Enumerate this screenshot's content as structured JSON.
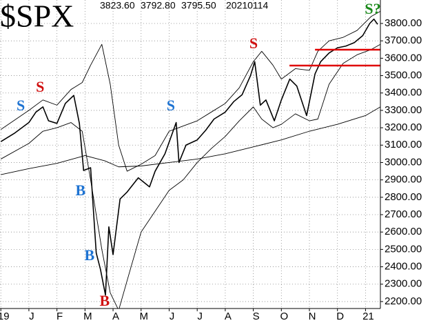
{
  "chart_data": {
    "type": "line",
    "title": "$SPX",
    "header_values": [
      "3823.60",
      "3792.80",
      "3795.50",
      "20210114"
    ],
    "xlim": [
      -1.03,
      12.53
    ],
    "ylim": [
      2160,
      3935
    ],
    "grid": true,
    "xticks": [
      {
        "value": -1,
        "label": "19"
      },
      {
        "value": 0,
        "label": "J"
      },
      {
        "value": 1,
        "label": "F"
      },
      {
        "value": 2,
        "label": "M"
      },
      {
        "value": 3,
        "label": "A"
      },
      {
        "value": 4,
        "label": "M"
      },
      {
        "value": 5,
        "label": "J"
      },
      {
        "value": 6,
        "label": "J"
      },
      {
        "value": 7,
        "label": "A"
      },
      {
        "value": 8,
        "label": "S"
      },
      {
        "value": 9,
        "label": "O"
      },
      {
        "value": 10,
        "label": "N"
      },
      {
        "value": 11,
        "label": "D"
      },
      {
        "value": 12,
        "label": "21"
      }
    ],
    "yticks": [
      {
        "value": 2200,
        "label": "2200.00"
      },
      {
        "value": 2300,
        "label": "2300.00"
      },
      {
        "value": 2400,
        "label": "2400.00"
      },
      {
        "value": 2500,
        "label": "2500.00"
      },
      {
        "value": 2600,
        "label": "2600.00"
      },
      {
        "value": 2700,
        "label": "2700.00"
      },
      {
        "value": 2800,
        "label": "2800.00"
      },
      {
        "value": 2900,
        "label": "2900.00"
      },
      {
        "value": 3000,
        "label": "3000.00"
      },
      {
        "value": 3100,
        "label": "3100.00"
      },
      {
        "value": 3200,
        "label": "3200.00"
      },
      {
        "value": 3300,
        "label": "3300.00"
      },
      {
        "value": 3400,
        "label": "3400.00"
      },
      {
        "value": 3500,
        "label": "3500.00"
      },
      {
        "value": 3600,
        "label": "3600.00"
      },
      {
        "value": 3700,
        "label": "3700.00"
      },
      {
        "value": 3800,
        "label": "3800.00"
      }
    ],
    "series": [
      {
        "color": "#000000",
        "width": 1.6,
        "x": [
          -1.0,
          -0.5,
          0,
          0.25,
          0.5,
          0.7,
          1.0,
          1.3,
          1.6,
          1.8,
          1.95,
          2.2,
          2.4,
          2.55,
          2.73,
          2.85,
          3.0,
          3.25,
          3.5,
          3.9,
          4.3,
          4.5,
          4.85,
          5.25,
          5.35,
          5.6,
          6.0,
          6.3,
          6.6,
          7.0,
          7.3,
          7.6,
          7.9,
          8.05,
          8.25,
          8.45,
          8.75,
          9.0,
          9.3,
          9.55,
          9.9,
          10.2,
          10.4,
          10.7,
          11.0,
          11.3,
          11.6,
          11.9,
          12.15,
          12.3,
          12.43
        ],
        "values": [
          3120,
          3170,
          3230,
          3290,
          3320,
          3240,
          3225,
          3340,
          3386,
          3225,
          2954,
          2970,
          2480,
          2386,
          2237,
          2630,
          2470,
          2790,
          2830,
          2912,
          2860,
          2950,
          3050,
          3230,
          3000,
          3100,
          3130,
          3185,
          3250,
          3290,
          3350,
          3390,
          3500,
          3580,
          3330,
          3360,
          3240,
          3360,
          3480,
          3440,
          3270,
          3510,
          3580,
          3630,
          3660,
          3670,
          3690,
          3730,
          3800,
          3825,
          3795
        ]
      },
      {
        "color": "#000000",
        "width": 0.9,
        "x": [
          -1,
          0,
          0.5,
          1,
          1.5,
          1.9,
          2.2,
          2.6,
          2.9,
          3.2,
          3.5,
          4,
          4.5,
          5,
          5.5,
          6,
          6.5,
          7,
          7.5,
          8,
          8.3,
          8.7,
          9,
          9.5,
          10,
          10.3,
          10.7,
          11.2,
          11.7,
          12.2,
          12.53
        ],
        "values": [
          3190,
          3300,
          3360,
          3330,
          3420,
          3460,
          3560,
          3680,
          3450,
          3100,
          2950,
          2990,
          3040,
          3180,
          3210,
          3240,
          3290,
          3340,
          3430,
          3580,
          3640,
          3560,
          3480,
          3540,
          3530,
          3640,
          3700,
          3720,
          3760,
          3840,
          3870
        ]
      },
      {
        "color": "#000000",
        "width": 0.9,
        "x": [
          -1,
          0,
          0.5,
          1,
          1.5,
          1.9,
          2.2,
          2.6,
          2.9,
          3.2,
          3.5,
          4,
          4.5,
          5,
          5.5,
          6,
          6.5,
          7,
          7.5,
          8,
          8.3,
          8.7,
          9,
          9.5,
          10,
          10.3,
          10.7,
          11.2,
          11.7,
          12.2,
          12.53
        ],
        "values": [
          3020,
          3110,
          3180,
          3200,
          3230,
          3180,
          2900,
          2500,
          2250,
          2150,
          2320,
          2600,
          2720,
          2840,
          2900,
          3000,
          3080,
          3150,
          3240,
          3320,
          3250,
          3200,
          3220,
          3280,
          3240,
          3250,
          3450,
          3570,
          3620,
          3650,
          3680
        ]
      },
      {
        "color": "#000000",
        "width": 0.9,
        "x": [
          -1,
          0,
          1,
          2,
          2.7,
          3.2,
          4,
          5,
          6,
          7,
          8,
          9,
          10,
          11,
          12,
          12.53
        ],
        "values": [
          2930,
          2965,
          2995,
          3040,
          3010,
          2975,
          2980,
          3000,
          3020,
          3050,
          3090,
          3130,
          3180,
          3220,
          3270,
          3320
        ]
      }
    ],
    "levels": [
      {
        "value": 3649,
        "color": "#e00000",
        "x": [
          10.2,
          12.53
        ]
      },
      {
        "value": 3558,
        "color": "#e00000",
        "x": [
          9.29,
          12.53
        ]
      }
    ],
    "annotations": [
      {
        "text": "S",
        "color": "#1e73d2",
        "x": -0.29,
        "y": 3320
      },
      {
        "text": "S",
        "color": "#d01010",
        "x": 0.4,
        "y": 3427
      },
      {
        "text": "B",
        "color": "#1e73d2",
        "x": 1.84,
        "y": 2831
      },
      {
        "text": "B",
        "color": "#1e73d2",
        "x": 2.16,
        "y": 2458
      },
      {
        "text": "B",
        "color": "#d01010",
        "x": 2.7,
        "y": 2196
      },
      {
        "text": "S",
        "color": "#1e73d2",
        "x": 5.06,
        "y": 3320
      },
      {
        "text": "S",
        "color": "#d01010",
        "x": 8.01,
        "y": 3677
      },
      {
        "text": "S?",
        "color": "#1a8a1a",
        "x": 12.26,
        "y": 3875
      }
    ]
  }
}
